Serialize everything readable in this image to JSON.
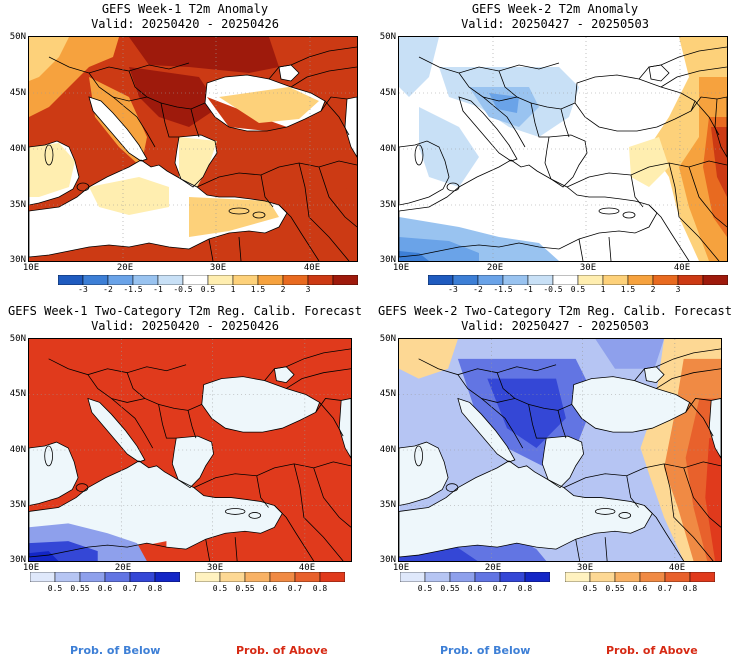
{
  "panels": [
    {
      "title": "GEFS Week-1 T2m Anomaly",
      "valid": "Valid: 20250420 - 20250426",
      "kind": "anomaly",
      "pattern": "w1anom"
    },
    {
      "title": "GEFS Week-2 T2m Anomaly",
      "valid": "Valid: 20250427 - 20250503",
      "kind": "anomaly",
      "pattern": "w2anom"
    },
    {
      "title": "GEFS Week-1 Two-Category T2m Reg. Calib. Forecast",
      "valid": "Valid: 20250420 - 20250426",
      "kind": "prob",
      "pattern": "w1prob"
    },
    {
      "title": "GEFS Week-2 Two-Category T2m Reg. Calib. Forecast",
      "valid": "Valid: 20250427 - 20250503",
      "kind": "prob",
      "pattern": "w2prob"
    }
  ],
  "axes": {
    "lat_labels": [
      "50N",
      "45N",
      "40N",
      "35N",
      "30N"
    ],
    "lon_labels": [
      "10E",
      "20E",
      "30E",
      "40E"
    ],
    "lat_range": [
      30,
      50
    ],
    "lon_range": [
      10,
      45
    ]
  },
  "anomaly_colorbar": {
    "labels": [
      "-3",
      "-2",
      "-1.5",
      "-1",
      "-0.5",
      "0.5",
      "1",
      "1.5",
      "2",
      "3"
    ],
    "colors": [
      "#1f5bbf",
      "#3d7fd6",
      "#6aa3e8",
      "#99c3f0",
      "#c8e0f6",
      "#ffffff",
      "#ffeeb0",
      "#fdd17a",
      "#f6a23e",
      "#e86a20",
      "#cc3a14",
      "#9e1a0c"
    ]
  },
  "prob_colorbar": {
    "below_labels": [
      "0.5",
      "0.55",
      "0.6",
      "0.7",
      "0.8"
    ],
    "below_colors": [
      "#dfe8fb",
      "#b6c5f3",
      "#8ea0ec",
      "#6275e3",
      "#3447d6",
      "#1326c6"
    ],
    "above_labels": [
      "0.5",
      "0.55",
      "0.6",
      "0.7",
      "0.8"
    ],
    "above_colors": [
      "#fff2c0",
      "#fdd894",
      "#f8b266",
      "#f08a44",
      "#e8612c",
      "#e03a1c"
    ]
  },
  "footer": {
    "below_text": "Prob. of Below",
    "above_text": "Prob. of Above",
    "below_color": "#3d7fd6",
    "above_color": "#d62a14"
  }
}
